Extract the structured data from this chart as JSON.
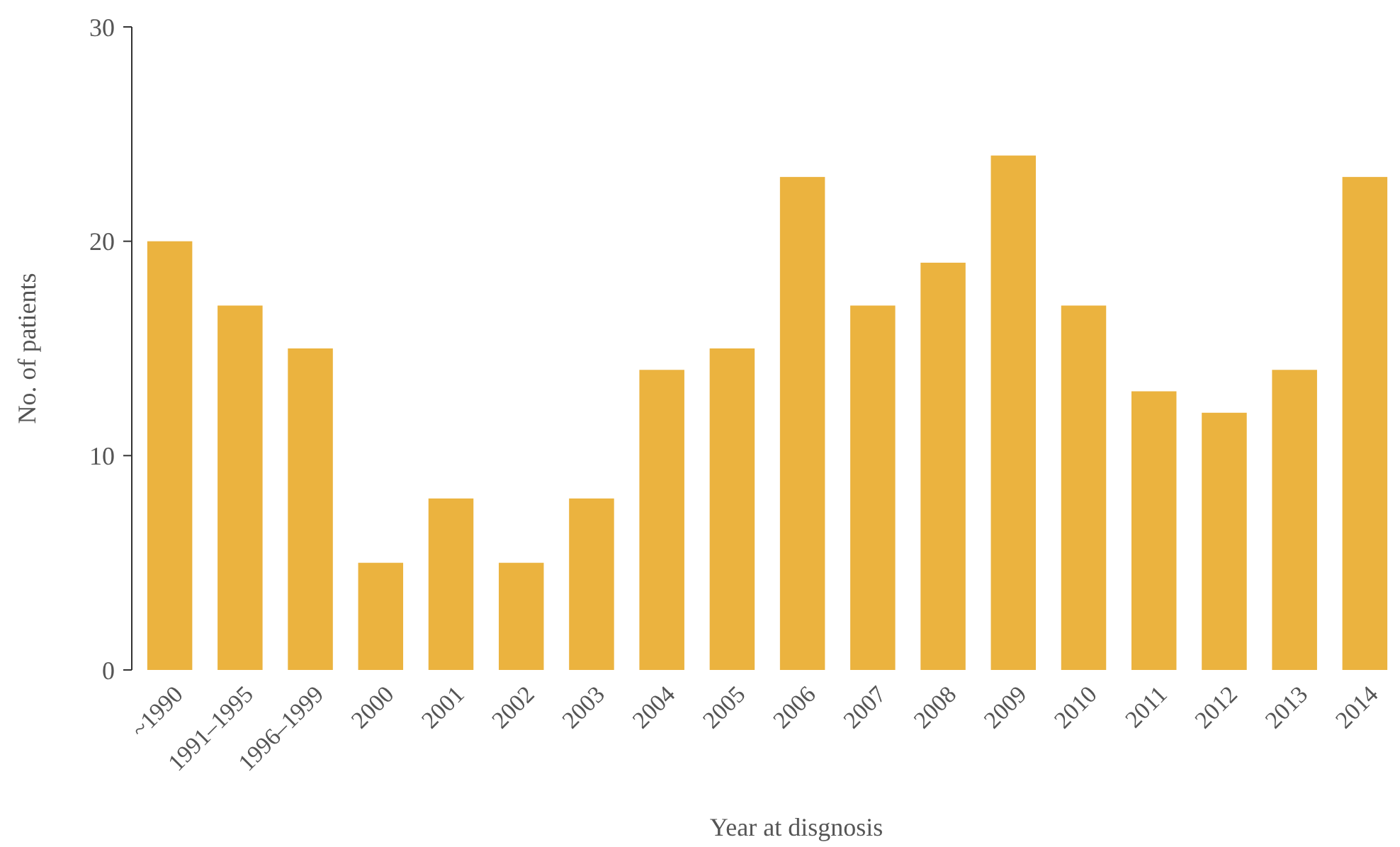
{
  "chart_data": {
    "type": "bar",
    "xlabel": "Year at disgnosis",
    "ylabel": "No. of patients",
    "categories": [
      "~1990",
      "1991–1995",
      "1996–1999",
      "2000",
      "2001",
      "2002",
      "2003",
      "2004",
      "2005",
      "2006",
      "2007",
      "2008",
      "2009",
      "2010",
      "2011",
      "2012",
      "2013",
      "2014"
    ],
    "values": [
      20,
      17,
      15,
      5,
      8,
      5,
      8,
      14,
      15,
      23,
      17,
      19,
      24,
      17,
      13,
      12,
      14,
      23
    ],
    "color": "#ebb33f",
    "ylim": [
      0,
      30
    ],
    "yticks": [
      0,
      10,
      20,
      30
    ],
    "grid": false
  }
}
